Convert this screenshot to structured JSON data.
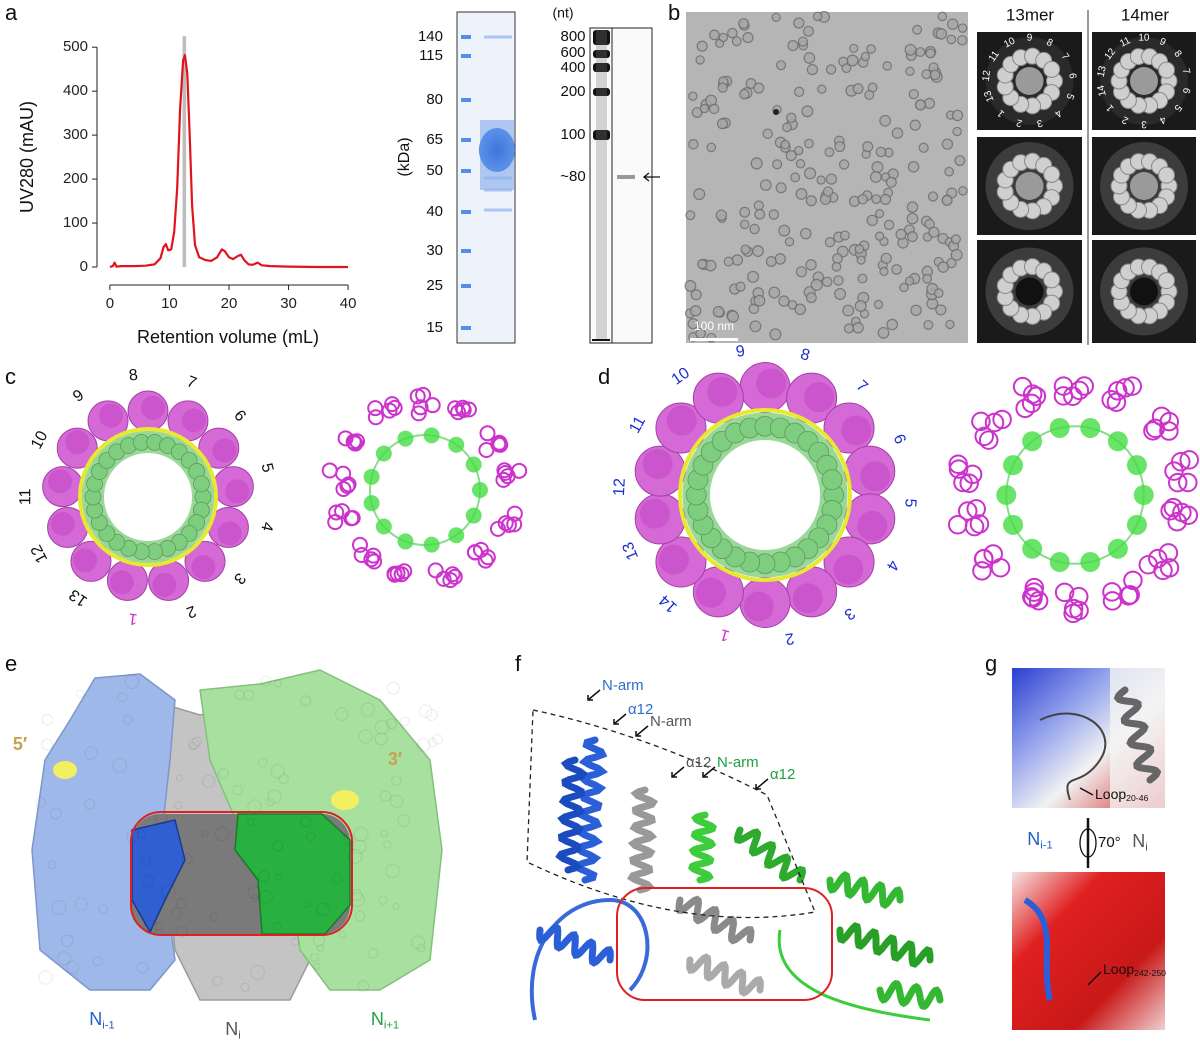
{
  "chart_data": {
    "type": "line",
    "xlabel": "Retention volume (mL)",
    "ylabel": "UV280 (mAU)",
    "color": "#e0141e",
    "x": [
      0,
      0.5,
      0.8,
      1.1,
      2,
      4,
      6,
      7.5,
      8.5,
      9,
      9.4,
      9.8,
      10.3,
      10.8,
      11.3,
      11.8,
      12.3,
      12.6,
      13,
      13.4,
      13.8,
      14.3,
      15,
      16,
      17,
      18,
      18.8,
      19.3,
      20,
      20.7,
      21.5,
      22,
      22.6,
      23.3,
      24,
      24.8,
      25.5,
      27,
      30,
      35,
      40
    ],
    "values": [
      0,
      2,
      10,
      1,
      2,
      2,
      3,
      6,
      20,
      45,
      52,
      38,
      40,
      80,
      180,
      360,
      470,
      482,
      440,
      300,
      140,
      50,
      22,
      16,
      14,
      22,
      40,
      36,
      22,
      18,
      25,
      28,
      15,
      6,
      5,
      10,
      4,
      2,
      1,
      0,
      0
    ],
    "xlim": [
      -3,
      42
    ],
    "ylim": [
      -25,
      530
    ],
    "xticks": [
      0,
      10,
      20,
      30,
      40
    ],
    "yticks": [
      0,
      100,
      200,
      300,
      400,
      500
    ],
    "highlight": {
      "x": [
        12.2,
        12.8
      ],
      "y": [
        0,
        525
      ],
      "color": "#bdbdbd"
    }
  },
  "panel_labels": [
    "a",
    "b",
    "c",
    "d",
    "e",
    "f",
    "g"
  ],
  "gel_protein": {
    "axis_label": "(kDa)",
    "markers": [
      140,
      115,
      80,
      65,
      50,
      40,
      30,
      25,
      15
    ]
  },
  "gel_rna": {
    "axis_label": "(nt)",
    "markers": [
      "800",
      "600",
      "400",
      "200",
      "100",
      "~80"
    ]
  },
  "micrograph": {
    "scale_bar": "100 nm"
  },
  "class_averages": {
    "columns": [
      "13mer",
      "14mer"
    ]
  },
  "ring_13": {
    "numbers": [
      1,
      2,
      3,
      4,
      5,
      6,
      7,
      8,
      9,
      10,
      11,
      12,
      13
    ]
  },
  "ring_14": {
    "numbers": [
      1,
      2,
      3,
      4,
      5,
      6,
      7,
      8,
      9,
      10,
      11,
      12,
      13,
      14
    ]
  },
  "panel_e": {
    "five_prime": "5′",
    "three_prime": "3′",
    "subunits": [
      {
        "base": "N",
        "sub": "i-1"
      },
      {
        "base": "N",
        "sub": "i"
      },
      {
        "base": "N",
        "sub": "i+1"
      }
    ]
  },
  "panel_f": {
    "labels": [
      "N-arm",
      "α12",
      "N-arm",
      "α12",
      "N-arm",
      "α12"
    ]
  },
  "panel_g": {
    "loop_top": {
      "base": "Loop",
      "sub": "20-46"
    },
    "left": {
      "base": "N",
      "sub": "i-1"
    },
    "angle": "70°",
    "right": {
      "base": "N",
      "sub": "i"
    },
    "loop_bottom": {
      "base": "Loop",
      "sub": "242-250"
    }
  }
}
